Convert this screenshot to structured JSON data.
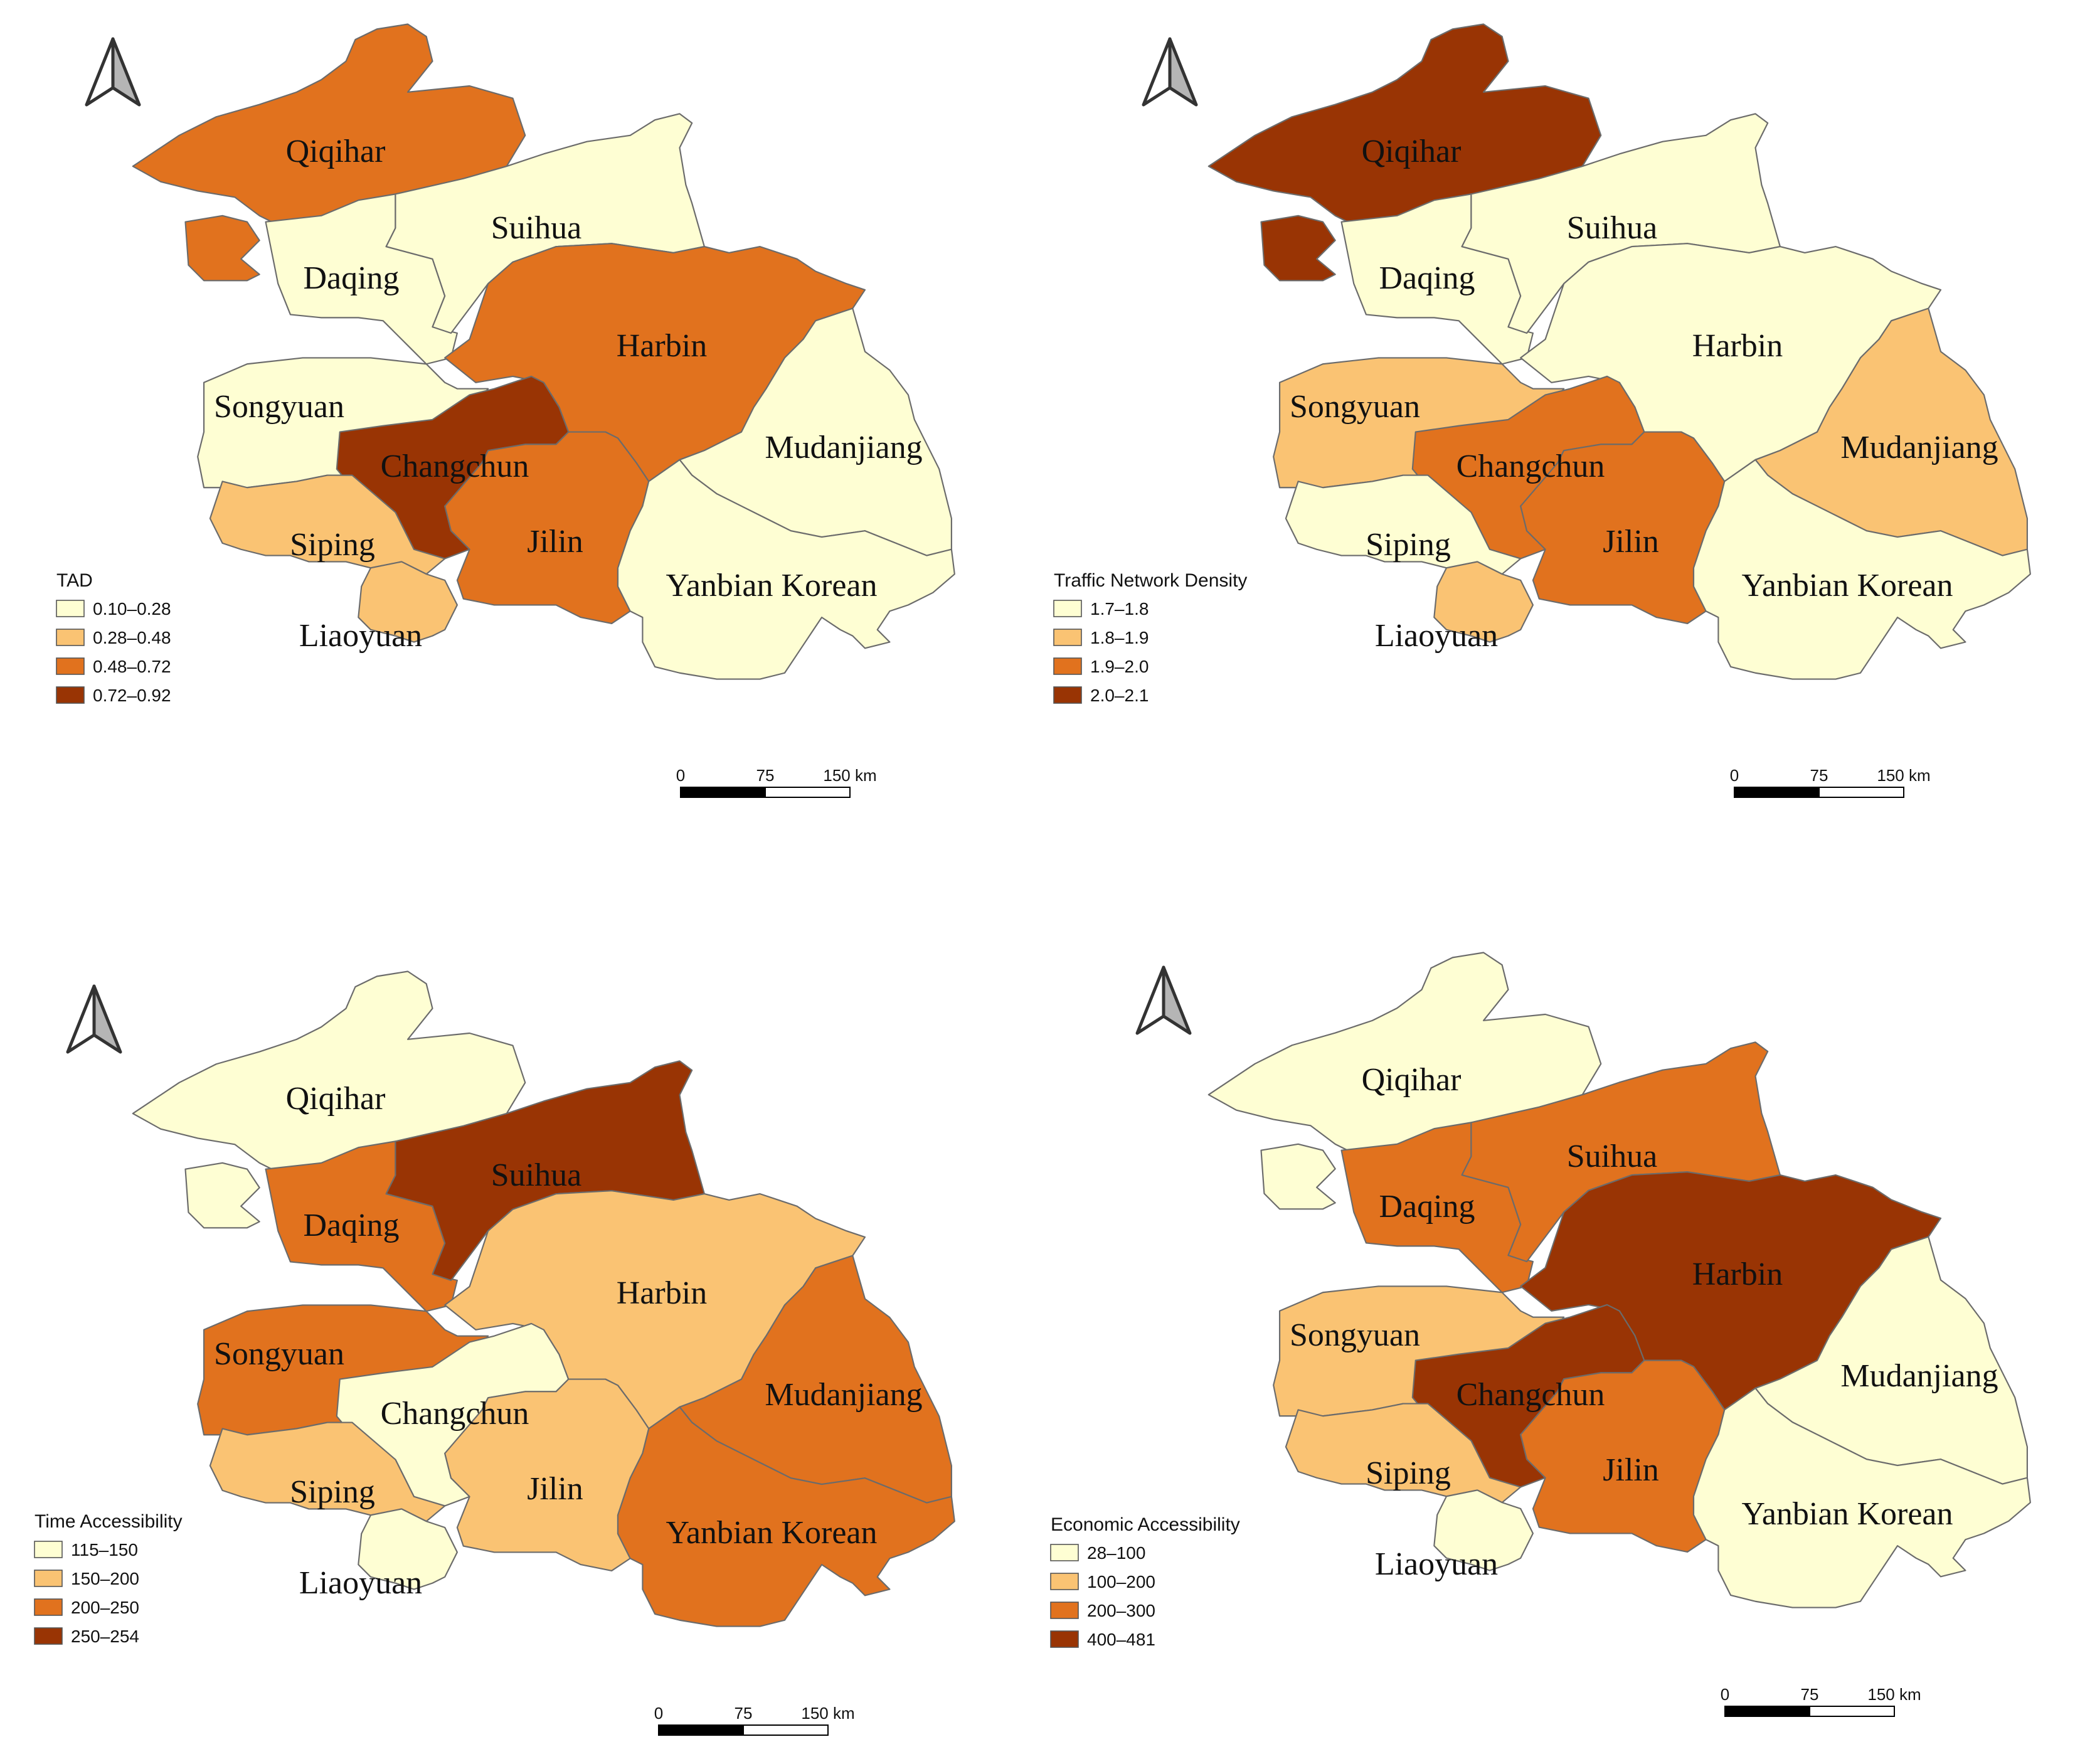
{
  "colors": {
    "class1": "#FEFED3",
    "class2": "#FAC373",
    "class3": "#E1721E",
    "class4": "#993404",
    "border": "#6b6b6b"
  },
  "icons": {
    "north_arrow": "north-arrow-icon"
  },
  "scale_bar": {
    "labels": [
      "0",
      "75",
      "150 km"
    ]
  },
  "panels": [
    {
      "legend_title": "TAD",
      "legend_items": [
        "0.10–0.28",
        "0.28–0.48",
        "0.48–0.72",
        "0.72–0.92"
      ],
      "regions": {
        "Qiqihar": 3,
        "Daqing": 1,
        "Suihua": 1,
        "Harbin": 3,
        "Songyuan": 1,
        "Changchun": 4,
        "Jilin": 3,
        "Siping": 2,
        "Liaoyuan": 2,
        "Mudanjiang": 1,
        "Yanbian Korean": 1
      }
    },
    {
      "legend_title": "Traffic Network Density",
      "legend_items": [
        "1.7–1.8",
        "1.8–1.9",
        "1.9–2.0",
        "2.0–2.1"
      ],
      "regions": {
        "Qiqihar": 4,
        "Daqing": 1,
        "Suihua": 1,
        "Harbin": 1,
        "Songyuan": 2,
        "Changchun": 3,
        "Jilin": 3,
        "Siping": 1,
        "Liaoyuan": 2,
        "Mudanjiang": 2,
        "Yanbian Korean": 1
      }
    },
    {
      "legend_title": "Time Accessibility",
      "legend_items": [
        "115–150",
        "150–200",
        "200–250",
        "250–254"
      ],
      "regions": {
        "Qiqihar": 1,
        "Daqing": 3,
        "Suihua": 4,
        "Harbin": 2,
        "Songyuan": 3,
        "Changchun": 1,
        "Jilin": 2,
        "Siping": 2,
        "Liaoyuan": 1,
        "Mudanjiang": 3,
        "Yanbian Korean": 3
      }
    },
    {
      "legend_title": "Economic Accessibility",
      "legend_items": [
        "28–100",
        "100–200",
        "200–300",
        "400–481"
      ],
      "regions": {
        "Qiqihar": 1,
        "Daqing": 3,
        "Suihua": 3,
        "Harbin": 4,
        "Songyuan": 2,
        "Changchun": 4,
        "Jilin": 3,
        "Siping": 2,
        "Liaoyuan": 1,
        "Mudanjiang": 1,
        "Yanbian Korean": 1
      }
    }
  ],
  "labels": [
    "Qiqihar",
    "Suihua",
    "Daqing",
    "Harbin",
    "Songyuan",
    "Changchun",
    "Mudanjiang",
    "Siping",
    "Jilin",
    "Yanbian Korean",
    "Liaoyuan"
  ]
}
